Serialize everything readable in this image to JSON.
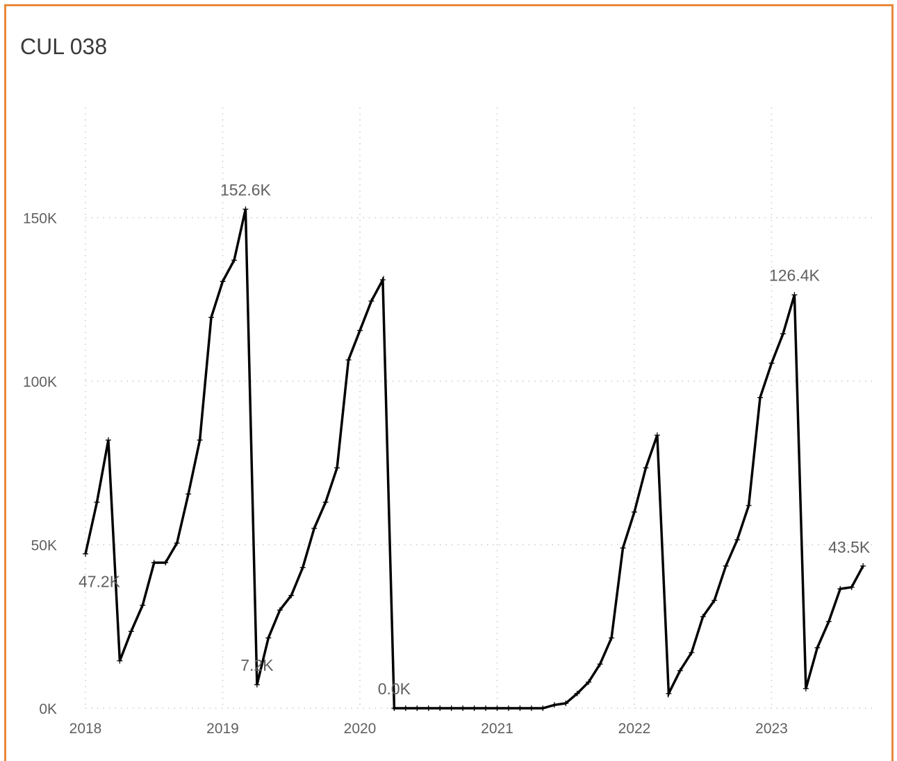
{
  "title": "CUL 038",
  "chart_data": {
    "type": "line",
    "title": "CUL 038",
    "xlabel": "",
    "ylabel": "",
    "x_ticks": [
      "2018",
      "2019",
      "2020",
      "2021",
      "2022",
      "2023"
    ],
    "y_ticks": [
      "0K",
      "50K",
      "100K",
      "150K"
    ],
    "ylim": [
      0,
      170000
    ],
    "grid": true,
    "line_color": "#000000",
    "border_color": "#e8893a",
    "series": [
      {
        "x": [
          "2018-01",
          "2018-02",
          "2018-03",
          "2018-04",
          "2018-05",
          "2018-06",
          "2018-07",
          "2018-08",
          "2018-09",
          "2018-10",
          "2018-11",
          "2018-12",
          "2019-01",
          "2019-02",
          "2019-03",
          "2019-04",
          "2019-05",
          "2019-06",
          "2019-07",
          "2019-08",
          "2019-09",
          "2019-10",
          "2019-11",
          "2019-12",
          "2020-01",
          "2020-02",
          "2020-03",
          "2020-04",
          "2020-05",
          "2020-06",
          "2020-07",
          "2020-08",
          "2020-09",
          "2020-10",
          "2020-11",
          "2020-12",
          "2021-01",
          "2021-02",
          "2021-03",
          "2021-04",
          "2021-05",
          "2021-06",
          "2021-07",
          "2021-08",
          "2021-09",
          "2021-10",
          "2021-11",
          "2021-12",
          "2022-01",
          "2022-02",
          "2022-03",
          "2022-04",
          "2022-05",
          "2022-06",
          "2022-07",
          "2022-08",
          "2022-09",
          "2022-10",
          "2022-11",
          "2022-12",
          "2023-01",
          "2023-02",
          "2023-03",
          "2023-04",
          "2023-05",
          "2023-06",
          "2023-07",
          "2023-08",
          "2023-09"
        ],
        "values": [
          47200,
          63000,
          82000,
          14500,
          23500,
          31500,
          44500,
          44500,
          50500,
          65500,
          82000,
          119500,
          130500,
          137000,
          152600,
          7200,
          21500,
          30000,
          34500,
          43000,
          55000,
          63000,
          73500,
          106500,
          115500,
          124500,
          131000,
          0,
          0,
          0,
          0,
          0,
          0,
          0,
          0,
          0,
          0,
          0,
          0,
          0,
          0,
          1000,
          1500,
          4500,
          8000,
          13500,
          21500,
          49000,
          60000,
          73500,
          83500,
          4500,
          11500,
          17000,
          28000,
          33000,
          43500,
          51500,
          62000,
          95000,
          105500,
          114500,
          126400,
          6000,
          18500,
          26500,
          36500,
          37000,
          43500
        ]
      }
    ],
    "data_labels": [
      {
        "x": "2018-01",
        "text": "47.2K"
      },
      {
        "x": "2019-03",
        "text": "152.6K"
      },
      {
        "x": "2019-04",
        "text": "7.2K"
      },
      {
        "x": "2020-04",
        "text": "0.0K"
      },
      {
        "x": "2023-03",
        "text": "126.4K"
      },
      {
        "x": "2023-09",
        "text": "43.5K"
      }
    ]
  }
}
